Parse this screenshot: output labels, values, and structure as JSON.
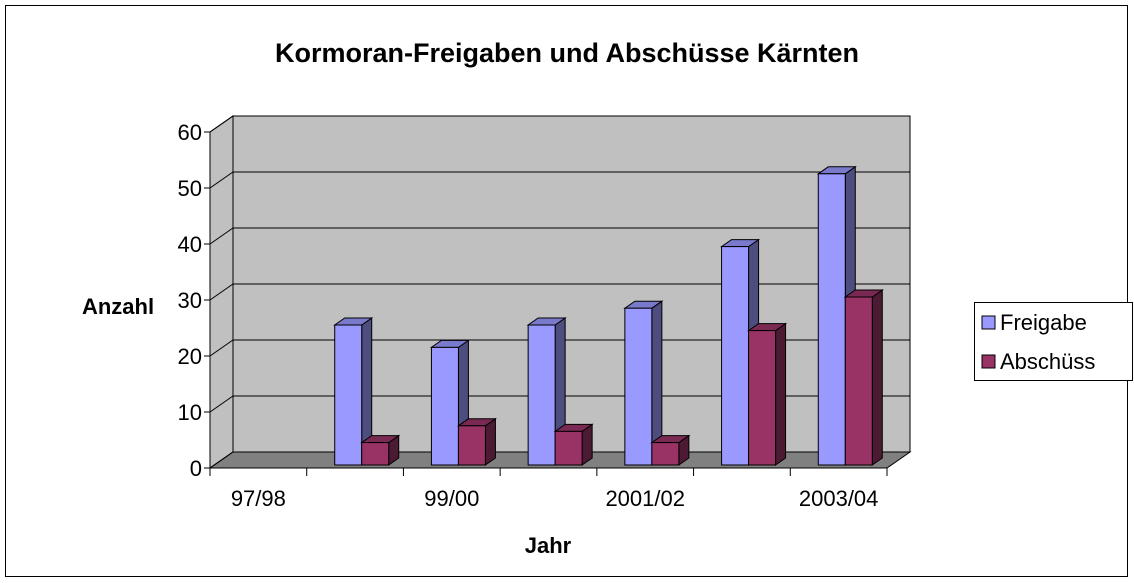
{
  "chart_data": {
    "type": "bar3d",
    "title": "Kormoran-Freigaben und Abschüsse Kärnten",
    "x_label": "Jahr",
    "y_label": "Anzahl",
    "categories": [
      "97/98",
      null,
      "99/00",
      null,
      "2001/02",
      null,
      "2003/04"
    ],
    "series": [
      {
        "name": "Freigabe",
        "color": "#9999ff",
        "values": [
          null,
          25,
          21,
          25,
          28,
          39,
          52
        ]
      },
      {
        "name": "Abschüss",
        "color": "#993366",
        "values": [
          null,
          4,
          7,
          6,
          4,
          24,
          30
        ]
      }
    ],
    "ylim": [
      0,
      60
    ],
    "yticks": [
      0,
      10,
      20,
      30,
      40,
      50,
      60
    ],
    "grid": true,
    "legend": "right",
    "wall_color": "#c0c0c0",
    "floor_color": "#808080"
  }
}
